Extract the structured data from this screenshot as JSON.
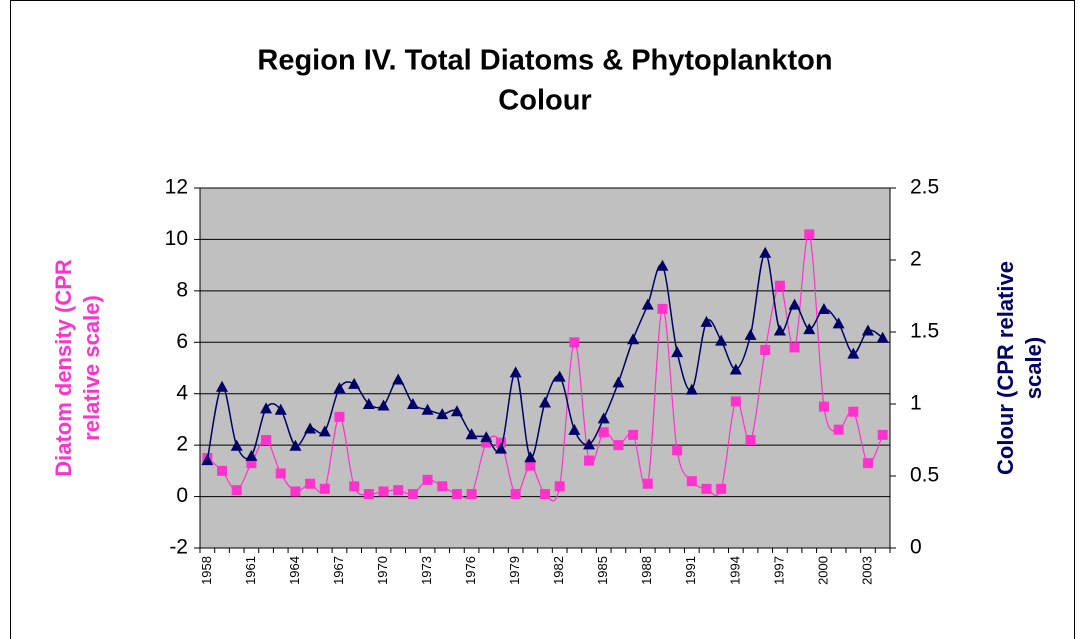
{
  "chart_data": {
    "type": "line",
    "title": [
      "Region IV. Total Diatoms & Phytoplankton",
      "Colour"
    ],
    "ylabel": [
      "Diatom density (CPR",
      "relative scale)"
    ],
    "y2label": [
      "Colour (CPR relative",
      "scale)"
    ],
    "categories": [
      "1958",
      null,
      null,
      "1961",
      null,
      null,
      "1964",
      null,
      null,
      "1967",
      null,
      null,
      "1970",
      null,
      null,
      "1973",
      null,
      null,
      "1976",
      null,
      null,
      "1979",
      null,
      null,
      "1982",
      null,
      null,
      "1985",
      null,
      null,
      "1988",
      null,
      null,
      "1991",
      null,
      null,
      "1994",
      null,
      null,
      "1997",
      null,
      null,
      "2000",
      null,
      null,
      "2003",
      null
    ],
    "series": [
      {
        "name": "Total Diatoms",
        "color": "#ff33cc",
        "marker": "square",
        "values": [
          1.5,
          1.0,
          0.25,
          1.3,
          2.2,
          0.9,
          0.2,
          0.5,
          0.3,
          3.1,
          0.4,
          0.1,
          0.2,
          0.25,
          0.1,
          0.65,
          0.4,
          0.1,
          0.1,
          2.1,
          2.1,
          0.1,
          1.2,
          0.1,
          0.4,
          6.0,
          1.4,
          2.5,
          2.0,
          2.4,
          0.5,
          7.3,
          1.8,
          0.6,
          0.3,
          0.3,
          3.7,
          2.2,
          5.7,
          8.2,
          5.8,
          10.2,
          3.5,
          2.6,
          3.3,
          1.3,
          2.4
        ]
      },
      {
        "name": "Phytoplankton Colour",
        "color": "#000066",
        "marker": "triangle",
        "axis": "y2",
        "values": [
          0.61,
          1.12,
          0.71,
          0.64,
          0.97,
          0.96,
          0.71,
          0.83,
          0.81,
          1.11,
          1.14,
          1.0,
          0.99,
          1.17,
          1.0,
          0.96,
          0.93,
          0.95,
          0.79,
          0.77,
          0.69,
          1.22,
          0.63,
          1.01,
          1.19,
          0.82,
          0.72,
          0.9,
          1.15,
          1.45,
          1.69,
          1.96,
          1.36,
          1.1,
          1.57,
          1.44,
          1.24,
          1.48,
          2.05,
          1.51,
          1.69,
          1.52,
          1.66,
          1.56,
          1.35,
          1.51,
          1.46
        ]
      }
    ],
    "ylim": [
      -2,
      12
    ],
    "yticks": [
      -2,
      0,
      2,
      4,
      6,
      8,
      10,
      12
    ],
    "y2lim": [
      0,
      2.5
    ],
    "y2ticks": [
      0,
      0.5,
      1,
      1.5,
      2,
      2.5
    ],
    "grid": true,
    "plot_background": "#c0c0c0"
  }
}
